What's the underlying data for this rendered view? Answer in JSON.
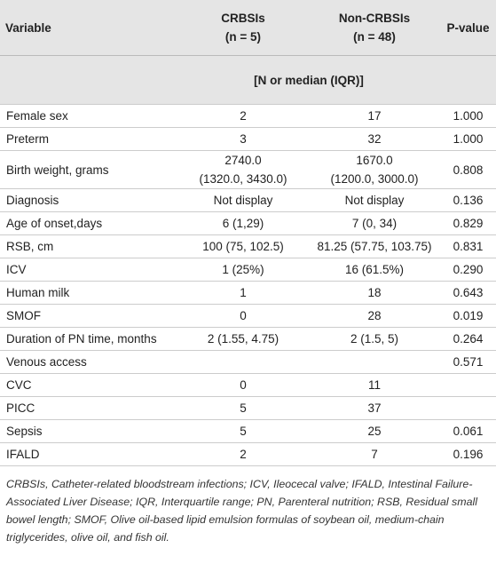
{
  "table": {
    "header": [
      "Variable",
      "CRBSIs\n(n = 5)",
      "Non-CRBSIs\n(n = 48)",
      "P-value"
    ],
    "subheader": "[N or median (IQR)]",
    "rows": [
      [
        "Female sex",
        "2",
        "17",
        "1.000"
      ],
      [
        "Preterm",
        "3",
        "32",
        "1.000"
      ],
      [
        "Birth weight, grams",
        "2740.0\n(1320.0, 3430.0)",
        "1670.0\n(1200.0, 3000.0)",
        "0.808"
      ],
      [
        "Diagnosis",
        "Not display",
        "Not display",
        "0.136"
      ],
      [
        "Age of onset,days",
        "6 (1,29)",
        "7 (0, 34)",
        "0.829"
      ],
      [
        "RSB, cm",
        "100 (75, 102.5)",
        "81.25 (57.75, 103.75)",
        "0.831"
      ],
      [
        "ICV",
        "1 (25%)",
        "16 (61.5%)",
        "0.290"
      ],
      [
        "Human milk",
        "1",
        "18",
        "0.643"
      ],
      [
        "SMOF",
        "0",
        "28",
        "0.019"
      ],
      [
        "Duration of PN time, months",
        "2 (1.55, 4.75)",
        "2 (1.5, 5)",
        "0.264"
      ],
      [
        "Venous access",
        null,
        null,
        "0.571"
      ],
      [
        "CVC",
        "0",
        "11",
        null
      ],
      [
        "PICC",
        "5",
        "37",
        null
      ],
      [
        "Sepsis",
        "5",
        "25",
        "0.061"
      ],
      [
        "IFALD",
        "2",
        "7",
        "0.196"
      ]
    ]
  },
  "footnote": "CRBSIs, Catheter-related bloodstream infections; ICV, Ileocecal valve; IFALD, Intestinal Failure-Associated Liver Disease; IQR, Interquartile range; PN, Parenteral nutrition; RSB, Residual small bowel length; SMOF, Olive oil-based lipid emulsion formulas of soybean oil, medium-chain triglycerides, olive oil, and fish oil."
}
